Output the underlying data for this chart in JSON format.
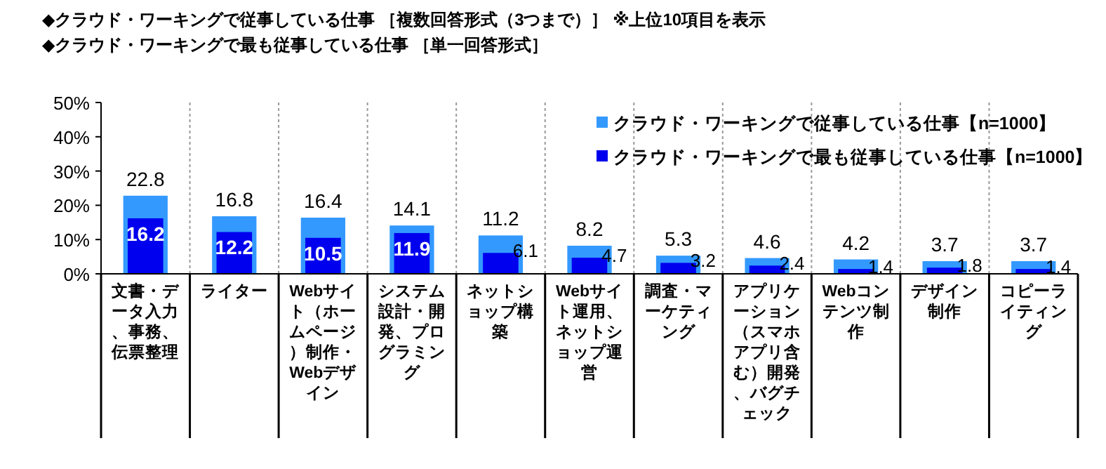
{
  "chart_data": {
    "type": "bar",
    "title": "◆クラウド・ワーキングで従事している仕事 ［複数回答形式（3つまで）］ ※上位10項目を表示",
    "subtitle": "◆クラウド・ワーキングで最も従事している仕事 ［単一回答形式］",
    "categories": [
      "文書・データ入力、事務、伝票整理",
      "ライター",
      "Webサイト（ホームページ）制作・Webデザイン",
      "システム設計・開発、プログラミング",
      "ネットショップ構築",
      "Webサイト運用、ネットショップ運営",
      "調査・マーケティング",
      "アプリケーション（スマホアプリ含む）開発、バグチェック",
      "Webコンテンツ制作",
      "デザイン制作",
      "コピーライティング"
    ],
    "series": [
      {
        "name": "クラウド・ワーキングで従事している仕事【n=1000】",
        "color": "#3399ff",
        "values": [
          22.8,
          16.8,
          16.4,
          14.1,
          11.2,
          8.2,
          5.3,
          4.6,
          4.2,
          3.7,
          3.7
        ]
      },
      {
        "name": "クラウド・ワーキングで最も従事している仕事【n=1000】",
        "color": "#0000ee",
        "values": [
          16.2,
          12.2,
          10.5,
          11.9,
          6.1,
          4.7,
          3.2,
          2.4,
          1.4,
          1.8,
          1.4
        ]
      }
    ],
    "ylim": [
      0,
      50
    ],
    "yticks": [
      {
        "value": 0,
        "label": "0%"
      },
      {
        "value": 10,
        "label": "10%"
      },
      {
        "value": 20,
        "label": "20%"
      },
      {
        "value": 30,
        "label": "30%"
      },
      {
        "value": 40,
        "label": "40%"
      },
      {
        "value": 50,
        "label": "50%"
      }
    ],
    "grid": "x",
    "legend": "top right",
    "data_labels": true
  }
}
